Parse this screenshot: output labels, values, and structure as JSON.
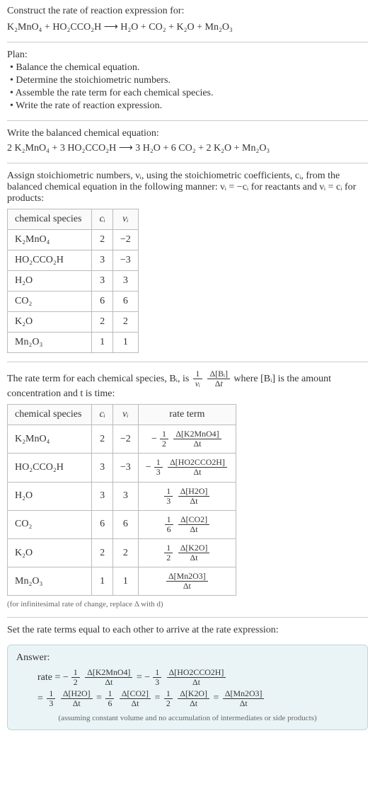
{
  "header": {
    "prompt": "Construct the rate of reaction expression for:",
    "unbalanced": "K₂MnO₄ + HO₂CCO₂H ⟶ H₂O + CO₂ + K₂O + Mn₂O₃"
  },
  "plan": {
    "title": "Plan:",
    "items": [
      "• Balance the chemical equation.",
      "• Determine the stoichiometric numbers.",
      "• Assemble the rate term for each chemical species.",
      "• Write the rate of reaction expression."
    ]
  },
  "balanced": {
    "title": "Write the balanced chemical equation:",
    "equation": "2 K₂MnO₄ + 3 HO₂CCO₂H ⟶ 3 H₂O + 6 CO₂ + 2 K₂O + Mn₂O₃"
  },
  "assign": {
    "text": "Assign stoichiometric numbers, νᵢ, using the stoichiometric coefficients, cᵢ, from the balanced chemical equation in the following manner: νᵢ = −cᵢ for reactants and νᵢ = cᵢ for products:"
  },
  "table1": {
    "headers": [
      "chemical species",
      "cᵢ",
      "νᵢ"
    ],
    "rows": [
      {
        "species": "K₂MnO₄",
        "c": "2",
        "v": "−2"
      },
      {
        "species": "HO₂CCO₂H",
        "c": "3",
        "v": "−3"
      },
      {
        "species": "H₂O",
        "c": "3",
        "v": "3"
      },
      {
        "species": "CO₂",
        "c": "6",
        "v": "6"
      },
      {
        "species": "K₂O",
        "c": "2",
        "v": "2"
      },
      {
        "species": "Mn₂O₃",
        "c": "1",
        "v": "1"
      }
    ]
  },
  "rateterm_intro": {
    "prefix": "The rate term for each chemical species, Bᵢ, is ",
    "suffix": " where [Bᵢ] is the amount concentration and t is time:"
  },
  "table2": {
    "headers": [
      "chemical species",
      "cᵢ",
      "νᵢ",
      "rate term"
    ],
    "rows": [
      {
        "species": "K₂MnO₄",
        "c": "2",
        "v": "−2",
        "sign": "−",
        "fnum": "1",
        "fden": "2",
        "dnum": "Δ[K2MnO4]",
        "dden": "Δt"
      },
      {
        "species": "HO₂CCO₂H",
        "c": "3",
        "v": "−3",
        "sign": "−",
        "fnum": "1",
        "fden": "3",
        "dnum": "Δ[HO2CCO2H]",
        "dden": "Δt"
      },
      {
        "species": "H₂O",
        "c": "3",
        "v": "3",
        "sign": "",
        "fnum": "1",
        "fden": "3",
        "dnum": "Δ[H2O]",
        "dden": "Δt"
      },
      {
        "species": "CO₂",
        "c": "6",
        "v": "6",
        "sign": "",
        "fnum": "1",
        "fden": "6",
        "dnum": "Δ[CO2]",
        "dden": "Δt"
      },
      {
        "species": "K₂O",
        "c": "2",
        "v": "2",
        "sign": "",
        "fnum": "1",
        "fden": "2",
        "dnum": "Δ[K2O]",
        "dden": "Δt"
      },
      {
        "species": "Mn₂O₃",
        "c": "1",
        "v": "1",
        "sign": "",
        "fnum": "",
        "fden": "",
        "dnum": "Δ[Mn2O3]",
        "dden": "Δt"
      }
    ],
    "note": "(for infinitesimal rate of change, replace Δ with d)"
  },
  "setequal": "Set the rate terms equal to each other to arrive at the rate expression:",
  "answer": {
    "label": "Answer:",
    "line1_prefix": "rate = ",
    "terms1": [
      {
        "sign": "−",
        "fnum": "1",
        "fden": "2",
        "dnum": "Δ[K2MnO4]",
        "dden": "Δt"
      },
      {
        "sign": "−",
        "fnum": "1",
        "fden": "3",
        "dnum": "Δ[HO2CCO2H]",
        "dden": "Δt"
      }
    ],
    "line2_prefix": "= ",
    "terms2": [
      {
        "sign": "",
        "fnum": "1",
        "fden": "3",
        "dnum": "Δ[H2O]",
        "dden": "Δt"
      },
      {
        "sign": "",
        "fnum": "1",
        "fden": "6",
        "dnum": "Δ[CO2]",
        "dden": "Δt"
      },
      {
        "sign": "",
        "fnum": "1",
        "fden": "2",
        "dnum": "Δ[K2O]",
        "dden": "Δt"
      },
      {
        "sign": "",
        "fnum": "",
        "fden": "",
        "dnum": "Δ[Mn2O3]",
        "dden": "Δt"
      }
    ],
    "assumption": "(assuming constant volume and no accumulation of intermediates or side products)"
  }
}
